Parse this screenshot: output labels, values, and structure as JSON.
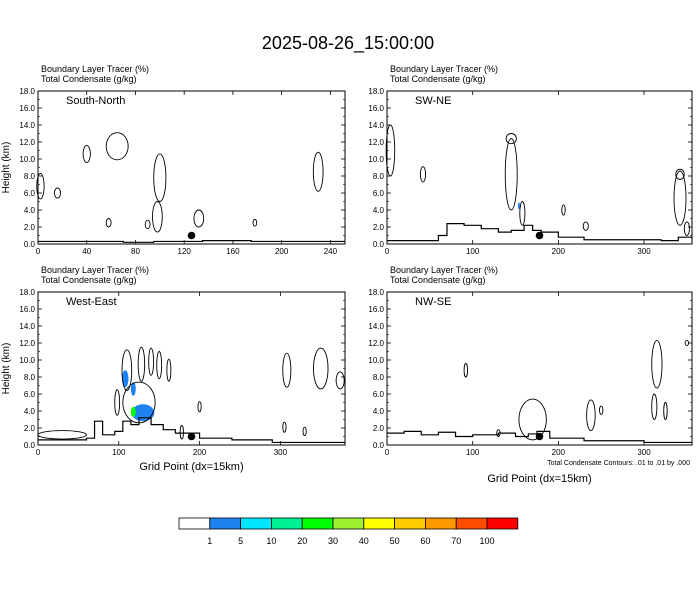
{
  "title": "2025-08-26_15:00:00",
  "footnote": "Total Condensate Contours: .01 to .01 by .000",
  "colorbar": {
    "colors": [
      "#ffffff",
      "#1e82f0",
      "#00e6ff",
      "#00f096",
      "#00ff00",
      "#a0f032",
      "#ffff00",
      "#ffcc00",
      "#ff9900",
      "#ff4d00",
      "#ff0000"
    ],
    "labels": [
      "1",
      "5",
      "10",
      "20",
      "30",
      "40",
      "50",
      "60",
      "70",
      "100"
    ]
  },
  "chart_data": [
    {
      "type": "contour",
      "name": "South-North",
      "header": [
        "Boundary Layer Tracer   (%)",
        "Total Condensate   (g/kg)"
      ],
      "ylabel": "Height (km)",
      "xlabel": "",
      "xlim": [
        0,
        252
      ],
      "ylim": [
        0,
        18
      ],
      "xticks": [
        0,
        40,
        80,
        120,
        160,
        200,
        240
      ],
      "yticks": [
        0,
        2,
        4,
        6,
        8,
        10,
        12,
        14,
        16,
        18
      ],
      "marker": {
        "x": 126,
        "y": 1.0
      },
      "terrain": [
        [
          0,
          0.3
        ],
        [
          30,
          0.3
        ],
        [
          70,
          0.2
        ],
        [
          95,
          0.3
        ],
        [
          110,
          0.3
        ],
        [
          135,
          0.4
        ],
        [
          175,
          0.3
        ],
        [
          215,
          0.3
        ],
        [
          252,
          0.3
        ]
      ],
      "tracer": [],
      "cloud": [
        {
          "cx": 65,
          "cy": 11.5,
          "rx": 9,
          "ry": 1.6
        },
        {
          "cx": 40,
          "cy": 10.6,
          "rx": 3,
          "ry": 1.0
        },
        {
          "cx": 2,
          "cy": 6.8,
          "rx": 3,
          "ry": 1.5
        },
        {
          "cx": 16,
          "cy": 6.0,
          "rx": 2.5,
          "ry": 0.6
        },
        {
          "cx": 100,
          "cy": 7.8,
          "rx": 5,
          "ry": 2.8
        },
        {
          "cx": 98,
          "cy": 3.2,
          "rx": 4,
          "ry": 1.8
        },
        {
          "cx": 90,
          "cy": 2.3,
          "rx": 2,
          "ry": 0.5
        },
        {
          "cx": 132,
          "cy": 3.0,
          "rx": 4,
          "ry": 1.0
        },
        {
          "cx": 58,
          "cy": 2.5,
          "rx": 2,
          "ry": 0.5
        },
        {
          "cx": 230,
          "cy": 8.5,
          "rx": 4,
          "ry": 2.3
        },
        {
          "cx": 178,
          "cy": 2.5,
          "rx": 1.5,
          "ry": 0.4
        }
      ]
    },
    {
      "type": "contour",
      "name": "SW-NE",
      "header": [
        "Boundary Layer Tracer   (%)",
        "Total Condensate   (g/kg)"
      ],
      "ylabel": "",
      "xlabel": "",
      "xlim": [
        0,
        356
      ],
      "ylim": [
        0,
        18
      ],
      "xticks": [
        0,
        100,
        200,
        300
      ],
      "yticks": [
        0,
        2,
        4,
        6,
        8,
        10,
        12,
        14,
        16,
        18
      ],
      "marker": {
        "x": 178,
        "y": 1.0
      },
      "terrain": [
        [
          0,
          0.4
        ],
        [
          60,
          1.0
        ],
        [
          70,
          2.4
        ],
        [
          90,
          2.2
        ],
        [
          110,
          1.8
        ],
        [
          130,
          1.4
        ],
        [
          145,
          1.6
        ],
        [
          160,
          2.2
        ],
        [
          170,
          1.6
        ],
        [
          180,
          1.4
        ],
        [
          200,
          0.8
        ],
        [
          230,
          0.5
        ],
        [
          280,
          0.5
        ],
        [
          320,
          0.4
        ],
        [
          340,
          0.8
        ],
        [
          356,
          0.6
        ]
      ],
      "tracer": [
        {
          "cx": 154,
          "cy": 4.5,
          "rx": 1.2,
          "ry": 0.4,
          "level": 1
        }
      ],
      "cloud": [
        {
          "cx": 4,
          "cy": 11.0,
          "rx": 5,
          "ry": 3.0
        },
        {
          "cx": 145,
          "cy": 8.2,
          "rx": 7,
          "ry": 4.2
        },
        {
          "cx": 145,
          "cy": 12.4,
          "rx": 6,
          "ry": 0.6
        },
        {
          "cx": 158,
          "cy": 3.6,
          "rx": 3,
          "ry": 1.4
        },
        {
          "cx": 206,
          "cy": 4.0,
          "rx": 2,
          "ry": 0.6
        },
        {
          "cx": 232,
          "cy": 2.1,
          "rx": 3,
          "ry": 0.5
        },
        {
          "cx": 342,
          "cy": 5.4,
          "rx": 7,
          "ry": 3.2
        },
        {
          "cx": 342,
          "cy": 8.2,
          "rx": 5,
          "ry": 0.6
        },
        {
          "cx": 350,
          "cy": 1.8,
          "rx": 3,
          "ry": 0.8
        },
        {
          "cx": 42,
          "cy": 8.2,
          "rx": 3,
          "ry": 0.9
        }
      ]
    },
    {
      "type": "contour",
      "name": "West-East",
      "header": [
        "Boundary Layer Tracer   (%)",
        "Total Condensate   (g/kg)"
      ],
      "ylabel": "Height (km)",
      "xlabel": "Grid Point (dx=15km)",
      "xlim": [
        0,
        380
      ],
      "ylim": [
        0,
        18
      ],
      "xticks": [
        0,
        100,
        200,
        300
      ],
      "yticks": [
        0,
        2,
        4,
        6,
        8,
        10,
        12,
        14,
        16,
        18
      ],
      "marker": {
        "x": 190,
        "y": 1.0
      },
      "terrain": [
        [
          0,
          0.6
        ],
        [
          60,
          0.8
        ],
        [
          70,
          2.8
        ],
        [
          80,
          1.2
        ],
        [
          95,
          1.6
        ],
        [
          105,
          2.8
        ],
        [
          115,
          2.4
        ],
        [
          125,
          3.2
        ],
        [
          140,
          2.4
        ],
        [
          155,
          1.8
        ],
        [
          170,
          1.4
        ],
        [
          200,
          0.8
        ],
        [
          240,
          0.6
        ],
        [
          290,
          0.3
        ],
        [
          380,
          0.3
        ]
      ],
      "tracer": [
        {
          "cx": 108,
          "cy": 7.8,
          "rx": 4,
          "ry": 1.0,
          "level": 1
        },
        {
          "cx": 118,
          "cy": 6.6,
          "rx": 3,
          "ry": 0.8,
          "level": 1
        },
        {
          "cx": 130,
          "cy": 3.8,
          "rx": 14,
          "ry": 1.0,
          "level": 1
        },
        {
          "cx": 118,
          "cy": 3.9,
          "rx": 3,
          "ry": 0.6,
          "level": 4
        }
      ],
      "cloud": [
        {
          "cx": 110,
          "cy": 8.8,
          "rx": 6,
          "ry": 2.4
        },
        {
          "cx": 128,
          "cy": 9.5,
          "rx": 4,
          "ry": 2.0
        },
        {
          "cx": 140,
          "cy": 9.8,
          "rx": 3,
          "ry": 1.6
        },
        {
          "cx": 150,
          "cy": 9.4,
          "rx": 3,
          "ry": 1.6
        },
        {
          "cx": 162,
          "cy": 8.8,
          "rx": 2.5,
          "ry": 1.3
        },
        {
          "cx": 125,
          "cy": 5.0,
          "rx": 20,
          "ry": 2.4
        },
        {
          "cx": 98,
          "cy": 5.0,
          "rx": 3,
          "ry": 1.5
        },
        {
          "cx": 30,
          "cy": 1.2,
          "rx": 30,
          "ry": 0.5
        },
        {
          "cx": 200,
          "cy": 4.5,
          "rx": 2,
          "ry": 0.6
        },
        {
          "cx": 178,
          "cy": 1.5,
          "rx": 2,
          "ry": 0.8
        },
        {
          "cx": 305,
          "cy": 2.1,
          "rx": 2,
          "ry": 0.6
        },
        {
          "cx": 330,
          "cy": 1.6,
          "rx": 2,
          "ry": 0.5
        },
        {
          "cx": 308,
          "cy": 8.8,
          "rx": 5,
          "ry": 2.0
        },
        {
          "cx": 350,
          "cy": 9.0,
          "rx": 9,
          "ry": 2.4
        },
        {
          "cx": 374,
          "cy": 7.6,
          "rx": 5,
          "ry": 1.0
        }
      ]
    },
    {
      "type": "contour",
      "name": "NW-SE",
      "header": [
        "Boundary Layer Tracer   (%)",
        "Total Condensate   (g/kg)"
      ],
      "ylabel": "",
      "xlabel": "Grid Point (dx=15km)",
      "xlim": [
        0,
        356
      ],
      "ylim": [
        0,
        18
      ],
      "xticks": [
        0,
        100,
        200,
        300
      ],
      "yticks": [
        0,
        2,
        4,
        6,
        8,
        10,
        12,
        14,
        16,
        18
      ],
      "marker": {
        "x": 178,
        "y": 1.0
      },
      "terrain": [
        [
          0,
          1.4
        ],
        [
          20,
          1.6
        ],
        [
          40,
          1.2
        ],
        [
          60,
          1.5
        ],
        [
          80,
          1.0
        ],
        [
          100,
          1.2
        ],
        [
          130,
          1.4
        ],
        [
          150,
          1.0
        ],
        [
          165,
          1.3
        ],
        [
          175,
          1.6
        ],
        [
          190,
          0.8
        ],
        [
          230,
          0.5
        ],
        [
          300,
          0.3
        ],
        [
          356,
          0.3
        ]
      ],
      "tracer": [],
      "cloud": [
        {
          "cx": 92,
          "cy": 8.8,
          "rx": 2,
          "ry": 0.8
        },
        {
          "cx": 170,
          "cy": 3.0,
          "rx": 16,
          "ry": 2.4
        },
        {
          "cx": 238,
          "cy": 3.5,
          "rx": 5,
          "ry": 1.8
        },
        {
          "cx": 250,
          "cy": 4.1,
          "rx": 2,
          "ry": 0.5
        },
        {
          "cx": 315,
          "cy": 9.5,
          "rx": 6,
          "ry": 2.8
        },
        {
          "cx": 312,
          "cy": 4.5,
          "rx": 3,
          "ry": 1.5
        },
        {
          "cx": 325,
          "cy": 4.0,
          "rx": 2,
          "ry": 1.0
        },
        {
          "cx": 350,
          "cy": 12.0,
          "rx": 2,
          "ry": 0.3
        },
        {
          "cx": 130,
          "cy": 1.4,
          "rx": 2,
          "ry": 0.4
        }
      ]
    }
  ]
}
